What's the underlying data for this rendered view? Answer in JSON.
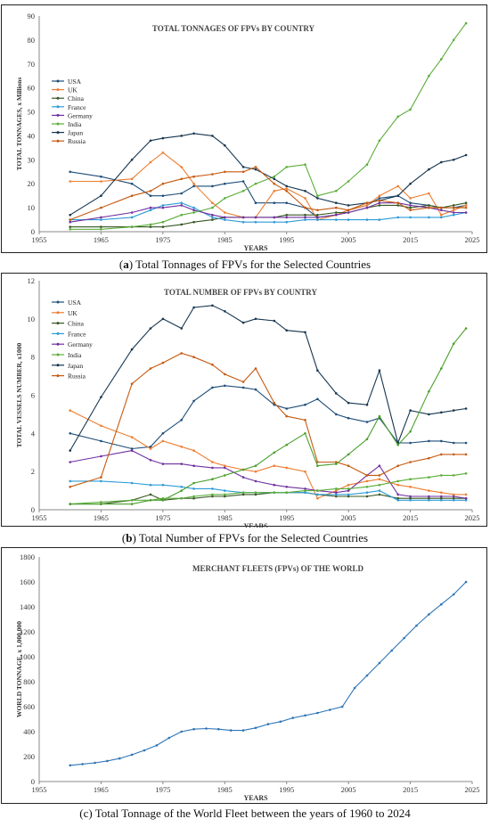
{
  "captions": [
    {
      "tag": "a",
      "text": "Total Tonnages of FPVs for the Selected Countries"
    },
    {
      "tag": "b",
      "text": "Total Number of FPVs for the Selected Countries"
    },
    {
      "tag": "c",
      "text": "Total Tonnage of the World Fleet between the years of 1960 to 2024"
    }
  ],
  "chart_data": [
    {
      "type": "line",
      "title": "TOTAL TONNAGES OF FPVs BY COUNTRY",
      "xlabel": "YEARS",
      "ylabel": "TOTAL TONNAGES, x Millions",
      "xlim": [
        1955,
        2025
      ],
      "ylim": [
        0,
        90
      ],
      "xticks": [
        1955,
        1965,
        1975,
        1985,
        1995,
        2005,
        2015,
        2025
      ],
      "yticks": [
        0,
        10,
        20,
        30,
        40,
        50,
        60,
        70,
        80,
        90
      ],
      "legend": "left",
      "grid": false,
      "x": [
        1960,
        1965,
        1970,
        1973,
        1975,
        1978,
        1980,
        1983,
        1985,
        1988,
        1990,
        1993,
        1995,
        1998,
        2000,
        2003,
        2005,
        2008,
        2010,
        2013,
        2015,
        2018,
        2020,
        2022,
        2024
      ],
      "series": [
        {
          "name": "USA",
          "color": "#1f4e79",
          "values": [
            25,
            23,
            20,
            15,
            15,
            16,
            19,
            19,
            20,
            21,
            12,
            12,
            12,
            10,
            6,
            7,
            9,
            11,
            14,
            15,
            12,
            11,
            10,
            10,
            11
          ]
        },
        {
          "name": "UK",
          "color": "#ed7d31",
          "values": [
            21,
            21,
            22,
            29,
            33,
            27,
            20,
            12,
            8,
            6,
            6,
            17,
            18,
            14,
            5,
            7,
            9,
            11,
            15,
            19,
            14,
            16,
            7,
            9,
            11
          ]
        },
        {
          "name": "China",
          "color": "#385723",
          "values": [
            2,
            2,
            2,
            2,
            2,
            3,
            4,
            5,
            6,
            6,
            6,
            6,
            7,
            7,
            7,
            8,
            8,
            10,
            11,
            11,
            10,
            11,
            10,
            11,
            12
          ]
        },
        {
          "name": "France",
          "color": "#2e9bd6",
          "values": [
            5,
            5,
            6,
            9,
            11,
            12,
            10,
            6,
            5,
            4,
            4,
            4,
            4,
            5,
            5,
            5,
            5,
            5,
            5,
            6,
            6,
            6,
            6,
            7,
            8
          ]
        },
        {
          "name": "Germany",
          "color": "#7030a0",
          "values": [
            4,
            6,
            8,
            10,
            10,
            11,
            9,
            7,
            6,
            6,
            6,
            6,
            6,
            6,
            6,
            7,
            8,
            10,
            12,
            12,
            11,
            10,
            9,
            8,
            8
          ]
        },
        {
          "name": "India",
          "color": "#5bad3a",
          "values": [
            1,
            1,
            2,
            3,
            4,
            7,
            8,
            10,
            14,
            17,
            20,
            23,
            27,
            28,
            15,
            17,
            21,
            28,
            38,
            48,
            51,
            65,
            72,
            80,
            87
          ]
        },
        {
          "name": "Japan",
          "color": "#17364f",
          "values": [
            7,
            15,
            30,
            38,
            39,
            40,
            41,
            40,
            36,
            27,
            26,
            22,
            19,
            17,
            14,
            12,
            11,
            12,
            13,
            15,
            20,
            26,
            29,
            30,
            32
          ]
        },
        {
          "name": "Russia",
          "color": "#c55a11",
          "values": [
            5,
            10,
            15,
            17,
            20,
            22,
            23,
            24,
            25,
            25,
            27,
            20,
            17,
            10,
            9,
            10,
            9,
            12,
            13,
            12,
            9,
            10,
            10,
            10,
            10
          ]
        }
      ]
    },
    {
      "type": "line",
      "title": "TOTAL NUMBER OF FPVs BY COUNTRY",
      "xlabel": "YEARS",
      "ylabel": "TOTAL VESSELS NUMBER, x1000",
      "xlim": [
        1955,
        2025
      ],
      "ylim": [
        0,
        12
      ],
      "xticks": [
        1955,
        1965,
        1975,
        1985,
        1995,
        2005,
        2015,
        2025
      ],
      "yticks": [
        0,
        2,
        4,
        6,
        8,
        10,
        12
      ],
      "legend": "left",
      "grid": false,
      "x": [
        1960,
        1965,
        1970,
        1973,
        1975,
        1978,
        1980,
        1983,
        1985,
        1988,
        1990,
        1993,
        1995,
        1998,
        2000,
        2003,
        2005,
        2008,
        2010,
        2013,
        2015,
        2018,
        2020,
        2022,
        2024
      ],
      "series": [
        {
          "name": "USA",
          "color": "#1f4e79",
          "values": [
            4.0,
            3.6,
            3.2,
            3.3,
            4.0,
            4.7,
            5.7,
            6.4,
            6.5,
            6.4,
            6.3,
            5.5,
            5.3,
            5.5,
            5.8,
            5.0,
            4.8,
            4.6,
            4.8,
            3.5,
            3.5,
            3.6,
            3.6,
            3.5,
            3.5
          ]
        },
        {
          "name": "UK",
          "color": "#ed7d31",
          "values": [
            5.2,
            4.4,
            3.8,
            3.2,
            3.6,
            3.3,
            3.1,
            2.5,
            2.3,
            2.1,
            2.0,
            2.3,
            2.2,
            2.0,
            0.6,
            1.0,
            1.3,
            1.5,
            1.6,
            1.3,
            1.2,
            1.0,
            0.9,
            0.8,
            0.8
          ]
        },
        {
          "name": "China",
          "color": "#385723",
          "values": [
            0.3,
            0.3,
            0.5,
            0.8,
            0.5,
            0.6,
            0.6,
            0.7,
            0.7,
            0.8,
            0.8,
            0.9,
            0.9,
            0.9,
            0.8,
            0.7,
            0.7,
            0.7,
            0.8,
            0.6,
            0.6,
            0.6,
            0.6,
            0.6,
            0.6
          ]
        },
        {
          "name": "France",
          "color": "#2e9bd6",
          "values": [
            1.5,
            1.5,
            1.4,
            1.3,
            1.3,
            1.2,
            1.1,
            1.1,
            1.0,
            0.9,
            0.9,
            0.9,
            0.9,
            0.9,
            0.8,
            0.8,
            0.8,
            0.9,
            1.0,
            0.5,
            0.5,
            0.5,
            0.5,
            0.5,
            0.5
          ]
        },
        {
          "name": "Germany",
          "color": "#7030a0",
          "values": [
            2.5,
            2.8,
            3.1,
            2.6,
            2.4,
            2.4,
            2.3,
            2.2,
            2.2,
            1.7,
            1.5,
            1.3,
            1.2,
            1.1,
            1.0,
            0.9,
            1.0,
            1.8,
            2.3,
            0.8,
            0.7,
            0.7,
            0.7,
            0.7,
            0.6
          ]
        },
        {
          "name": "India",
          "color": "#5bad3a",
          "values": [
            0.3,
            0.4,
            0.5,
            0.5,
            0.6,
            0.6,
            0.7,
            0.8,
            0.8,
            0.9,
            0.9,
            0.9,
            0.9,
            1.0,
            1.0,
            1.1,
            1.1,
            1.2,
            1.3,
            1.5,
            1.6,
            1.7,
            1.8,
            1.8,
            1.9
          ]
        },
        {
          "name": "Japan",
          "color": "#17364f",
          "values": [
            3.1,
            5.9,
            8.4,
            9.5,
            10.0,
            9.5,
            10.6,
            10.7,
            10.4,
            9.8,
            10.0,
            9.9,
            9.4,
            9.3,
            7.3,
            6.1,
            5.6,
            5.5,
            7.3,
            3.5,
            5.2,
            5.0,
            5.1,
            5.2,
            5.3
          ]
        },
        {
          "name": "Russia",
          "color": "#c55a11",
          "values": [
            1.2,
            1.7,
            6.6,
            7.4,
            7.7,
            8.2,
            8.0,
            7.6,
            7.1,
            6.7,
            7.4,
            5.6,
            4.9,
            4.7,
            2.5,
            2.5,
            2.3,
            1.8,
            1.8,
            2.3,
            2.5,
            2.7,
            2.9,
            2.9,
            2.9
          ]
        },
        {
          "name": "India (green)",
          "color": "#4aa02c",
          "values": [
            0.3,
            0.3,
            0.3,
            0.5,
            0.5,
            1.0,
            1.4,
            1.6,
            1.8,
            2.1,
            2.3,
            3.0,
            3.4,
            4.0,
            2.3,
            2.4,
            2.9,
            3.7,
            4.9,
            3.4,
            4.1,
            6.2,
            7.4,
            8.7,
            9.5
          ]
        }
      ]
    },
    {
      "type": "line",
      "title": "MERCHANT FLEETS (FPVs) OF THE WORLD",
      "xlabel": "YEARS",
      "ylabel": "WORLD TONNAGE, x 1,000,000",
      "xlim": [
        1955,
        2025
      ],
      "ylim": [
        0,
        1800
      ],
      "xticks": [
        1955,
        1965,
        1975,
        1985,
        1995,
        2005,
        2015,
        2025
      ],
      "yticks": [
        0,
        200,
        400,
        600,
        800,
        1000,
        1200,
        1400,
        1600,
        1800
      ],
      "grid": false,
      "series": [
        {
          "name": "World",
          "color": "#2e75b6",
          "x": [
            1960,
            1962,
            1964,
            1966,
            1968,
            1970,
            1972,
            1974,
            1976,
            1978,
            1980,
            1982,
            1984,
            1986,
            1988,
            1990,
            1992,
            1994,
            1996,
            1998,
            2000,
            2002,
            2004,
            2006,
            2008,
            2010,
            2012,
            2014,
            2016,
            2018,
            2020,
            2022,
            2024
          ],
          "values": [
            130,
            140,
            150,
            165,
            185,
            215,
            250,
            290,
            350,
            400,
            420,
            425,
            420,
            410,
            410,
            430,
            460,
            480,
            510,
            530,
            550,
            575,
            600,
            750,
            850,
            950,
            1050,
            1150,
            1250,
            1340,
            1420,
            1500,
            1600
          ]
        }
      ]
    }
  ]
}
